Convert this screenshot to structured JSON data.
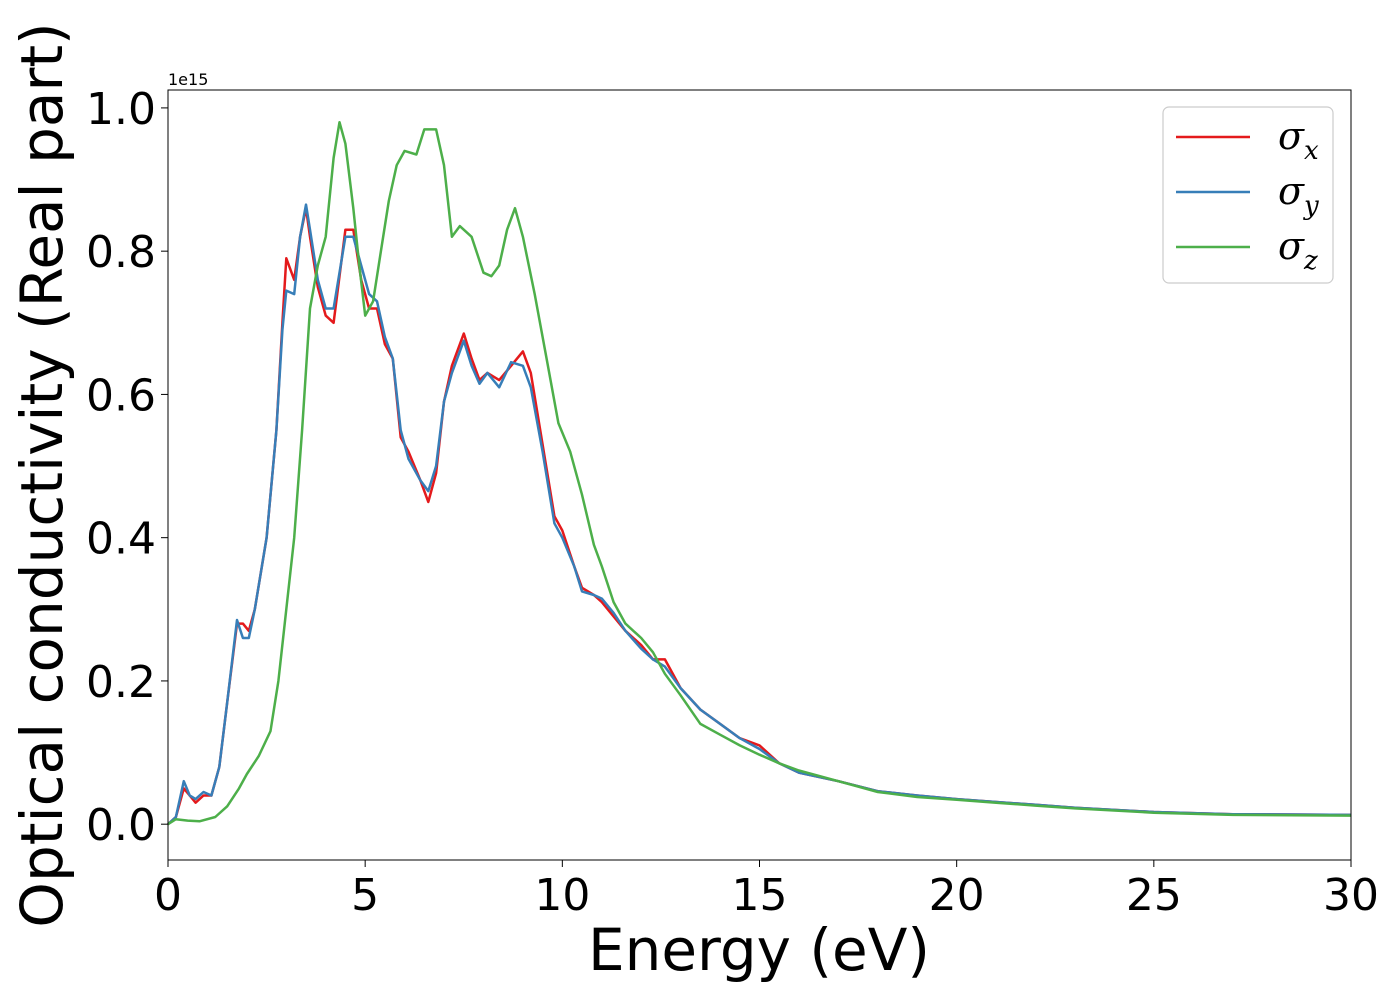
{
  "chart_data": {
    "type": "line",
    "xlabel": "Energy (eV)",
    "ylabel": "Optical conductivity (Real part)",
    "y_offset_text": "1e15",
    "xlim": [
      0,
      30
    ],
    "ylim": [
      -0.05,
      1.025
    ],
    "x_ticks": [
      0,
      5,
      10,
      15,
      20,
      25,
      30
    ],
    "x_tick_labels": [
      "0",
      "5",
      "10",
      "15",
      "20",
      "25",
      "30"
    ],
    "y_ticks": [
      0.0,
      0.2,
      0.4,
      0.6,
      0.8,
      1.0
    ],
    "y_tick_labels": [
      "0.0",
      "0.2",
      "0.4",
      "0.6",
      "0.8",
      "1.0"
    ],
    "grid": false,
    "legend_position": "top-right",
    "series": [
      {
        "name": "σx",
        "symbol": "σ",
        "subscript": "x",
        "color": "#e41a1c",
        "points": [
          [
            0,
            0
          ],
          [
            0.2,
            0.01
          ],
          [
            0.4,
            0.05
          ],
          [
            0.55,
            0.04
          ],
          [
            0.7,
            0.03
          ],
          [
            0.9,
            0.04
          ],
          [
            1.1,
            0.04
          ],
          [
            1.3,
            0.08
          ],
          [
            1.5,
            0.17
          ],
          [
            1.75,
            0.28
          ],
          [
            1.9,
            0.28
          ],
          [
            2.05,
            0.27
          ],
          [
            2.2,
            0.3
          ],
          [
            2.5,
            0.4
          ],
          [
            2.75,
            0.55
          ],
          [
            2.9,
            0.7
          ],
          [
            3.0,
            0.79
          ],
          [
            3.2,
            0.76
          ],
          [
            3.35,
            0.82
          ],
          [
            3.5,
            0.86
          ],
          [
            3.6,
            0.82
          ],
          [
            3.8,
            0.75
          ],
          [
            4.0,
            0.71
          ],
          [
            4.2,
            0.7
          ],
          [
            4.5,
            0.83
          ],
          [
            4.7,
            0.83
          ],
          [
            4.9,
            0.76
          ],
          [
            5.1,
            0.72
          ],
          [
            5.3,
            0.72
          ],
          [
            5.5,
            0.67
          ],
          [
            5.7,
            0.65
          ],
          [
            5.9,
            0.54
          ],
          [
            6.1,
            0.52
          ],
          [
            6.4,
            0.48
          ],
          [
            6.6,
            0.45
          ],
          [
            6.8,
            0.49
          ],
          [
            7.0,
            0.59
          ],
          [
            7.2,
            0.64
          ],
          [
            7.5,
            0.685
          ],
          [
            7.7,
            0.65
          ],
          [
            7.9,
            0.62
          ],
          [
            8.1,
            0.63
          ],
          [
            8.4,
            0.62
          ],
          [
            8.7,
            0.64
          ],
          [
            9.0,
            0.66
          ],
          [
            9.2,
            0.63
          ],
          [
            9.5,
            0.53
          ],
          [
            9.8,
            0.43
          ],
          [
            10.0,
            0.41
          ],
          [
            10.3,
            0.36
          ],
          [
            10.5,
            0.33
          ],
          [
            10.8,
            0.32
          ],
          [
            11.0,
            0.31
          ],
          [
            11.3,
            0.29
          ],
          [
            11.6,
            0.27
          ],
          [
            12.0,
            0.25
          ],
          [
            12.3,
            0.23
          ],
          [
            12.6,
            0.23
          ],
          [
            13.0,
            0.19
          ],
          [
            13.5,
            0.16
          ],
          [
            14.0,
            0.14
          ],
          [
            14.5,
            0.12
          ],
          [
            15.0,
            0.11
          ],
          [
            15.5,
            0.085
          ],
          [
            16.0,
            0.072
          ],
          [
            17.0,
            0.06
          ],
          [
            18.0,
            0.046
          ],
          [
            19.0,
            0.04
          ],
          [
            20.0,
            0.035
          ],
          [
            21.0,
            0.031
          ],
          [
            22.0,
            0.027
          ],
          [
            23.0,
            0.023
          ],
          [
            25.0,
            0.017
          ],
          [
            27.0,
            0.014
          ],
          [
            30.0,
            0.013
          ]
        ]
      },
      {
        "name": "σy",
        "symbol": "σ",
        "subscript": "y",
        "color": "#377eb8",
        "points": [
          [
            0,
            0
          ],
          [
            0.2,
            0.01
          ],
          [
            0.4,
            0.06
          ],
          [
            0.55,
            0.04
          ],
          [
            0.7,
            0.035
          ],
          [
            0.9,
            0.045
          ],
          [
            1.1,
            0.04
          ],
          [
            1.3,
            0.08
          ],
          [
            1.5,
            0.17
          ],
          [
            1.75,
            0.285
          ],
          [
            1.9,
            0.26
          ],
          [
            2.05,
            0.26
          ],
          [
            2.2,
            0.3
          ],
          [
            2.5,
            0.4
          ],
          [
            2.75,
            0.55
          ],
          [
            2.9,
            0.69
          ],
          [
            3.0,
            0.745
          ],
          [
            3.2,
            0.74
          ],
          [
            3.35,
            0.82
          ],
          [
            3.5,
            0.865
          ],
          [
            3.6,
            0.83
          ],
          [
            3.8,
            0.76
          ],
          [
            4.0,
            0.72
          ],
          [
            4.2,
            0.72
          ],
          [
            4.5,
            0.82
          ],
          [
            4.7,
            0.82
          ],
          [
            4.9,
            0.78
          ],
          [
            5.1,
            0.74
          ],
          [
            5.3,
            0.73
          ],
          [
            5.5,
            0.68
          ],
          [
            5.7,
            0.65
          ],
          [
            5.9,
            0.55
          ],
          [
            6.1,
            0.51
          ],
          [
            6.4,
            0.48
          ],
          [
            6.6,
            0.465
          ],
          [
            6.8,
            0.5
          ],
          [
            7.0,
            0.59
          ],
          [
            7.2,
            0.63
          ],
          [
            7.5,
            0.675
          ],
          [
            7.7,
            0.64
          ],
          [
            7.9,
            0.615
          ],
          [
            8.1,
            0.63
          ],
          [
            8.4,
            0.61
          ],
          [
            8.7,
            0.645
          ],
          [
            9.0,
            0.64
          ],
          [
            9.2,
            0.61
          ],
          [
            9.5,
            0.52
          ],
          [
            9.8,
            0.42
          ],
          [
            10.0,
            0.4
          ],
          [
            10.3,
            0.36
          ],
          [
            10.5,
            0.325
          ],
          [
            10.8,
            0.32
          ],
          [
            11.0,
            0.315
          ],
          [
            11.3,
            0.295
          ],
          [
            11.6,
            0.27
          ],
          [
            12.0,
            0.245
          ],
          [
            12.3,
            0.23
          ],
          [
            12.6,
            0.22
          ],
          [
            13.0,
            0.19
          ],
          [
            13.5,
            0.16
          ],
          [
            14.0,
            0.14
          ],
          [
            14.5,
            0.12
          ],
          [
            15.0,
            0.105
          ],
          [
            15.5,
            0.085
          ],
          [
            16.0,
            0.072
          ],
          [
            17.0,
            0.06
          ],
          [
            18.0,
            0.046
          ],
          [
            19.0,
            0.04
          ],
          [
            20.0,
            0.035
          ],
          [
            21.0,
            0.031
          ],
          [
            22.0,
            0.027
          ],
          [
            23.0,
            0.023
          ],
          [
            25.0,
            0.017
          ],
          [
            27.0,
            0.014
          ],
          [
            30.0,
            0.013
          ]
        ]
      },
      {
        "name": "σz",
        "symbol": "σ",
        "subscript": "z",
        "color": "#4daf4a",
        "points": [
          [
            0,
            0
          ],
          [
            0.2,
            0.007
          ],
          [
            0.5,
            0.005
          ],
          [
            0.8,
            0.004
          ],
          [
            1.2,
            0.01
          ],
          [
            1.5,
            0.025
          ],
          [
            1.8,
            0.05
          ],
          [
            2.0,
            0.07
          ],
          [
            2.3,
            0.095
          ],
          [
            2.6,
            0.13
          ],
          [
            2.8,
            0.2
          ],
          [
            3.0,
            0.3
          ],
          [
            3.2,
            0.4
          ],
          [
            3.4,
            0.55
          ],
          [
            3.6,
            0.72
          ],
          [
            3.8,
            0.78
          ],
          [
            4.0,
            0.82
          ],
          [
            4.2,
            0.93
          ],
          [
            4.35,
            0.98
          ],
          [
            4.5,
            0.95
          ],
          [
            4.7,
            0.86
          ],
          [
            4.85,
            0.78
          ],
          [
            5.0,
            0.71
          ],
          [
            5.2,
            0.73
          ],
          [
            5.4,
            0.8
          ],
          [
            5.6,
            0.87
          ],
          [
            5.8,
            0.92
          ],
          [
            6.0,
            0.94
          ],
          [
            6.3,
            0.935
          ],
          [
            6.5,
            0.97
          ],
          [
            6.8,
            0.97
          ],
          [
            7.0,
            0.92
          ],
          [
            7.2,
            0.82
          ],
          [
            7.4,
            0.835
          ],
          [
            7.7,
            0.82
          ],
          [
            8.0,
            0.77
          ],
          [
            8.2,
            0.765
          ],
          [
            8.4,
            0.78
          ],
          [
            8.6,
            0.83
          ],
          [
            8.8,
            0.86
          ],
          [
            9.0,
            0.82
          ],
          [
            9.3,
            0.74
          ],
          [
            9.6,
            0.65
          ],
          [
            9.9,
            0.56
          ],
          [
            10.2,
            0.52
          ],
          [
            10.5,
            0.46
          ],
          [
            10.8,
            0.39
          ],
          [
            11.0,
            0.36
          ],
          [
            11.3,
            0.31
          ],
          [
            11.6,
            0.28
          ],
          [
            12.0,
            0.26
          ],
          [
            12.3,
            0.24
          ],
          [
            12.6,
            0.21
          ],
          [
            13.0,
            0.18
          ],
          [
            13.5,
            0.14
          ],
          [
            14.0,
            0.125
          ],
          [
            14.5,
            0.11
          ],
          [
            15.0,
            0.097
          ],
          [
            15.5,
            0.085
          ],
          [
            16.0,
            0.075
          ],
          [
            17.0,
            0.06
          ],
          [
            18.0,
            0.045
          ],
          [
            19.0,
            0.038
          ],
          [
            20.0,
            0.034
          ],
          [
            21.0,
            0.03
          ],
          [
            22.0,
            0.026
          ],
          [
            23.0,
            0.022
          ],
          [
            25.0,
            0.016
          ],
          [
            27.0,
            0.013
          ],
          [
            30.0,
            0.012
          ]
        ]
      }
    ]
  }
}
